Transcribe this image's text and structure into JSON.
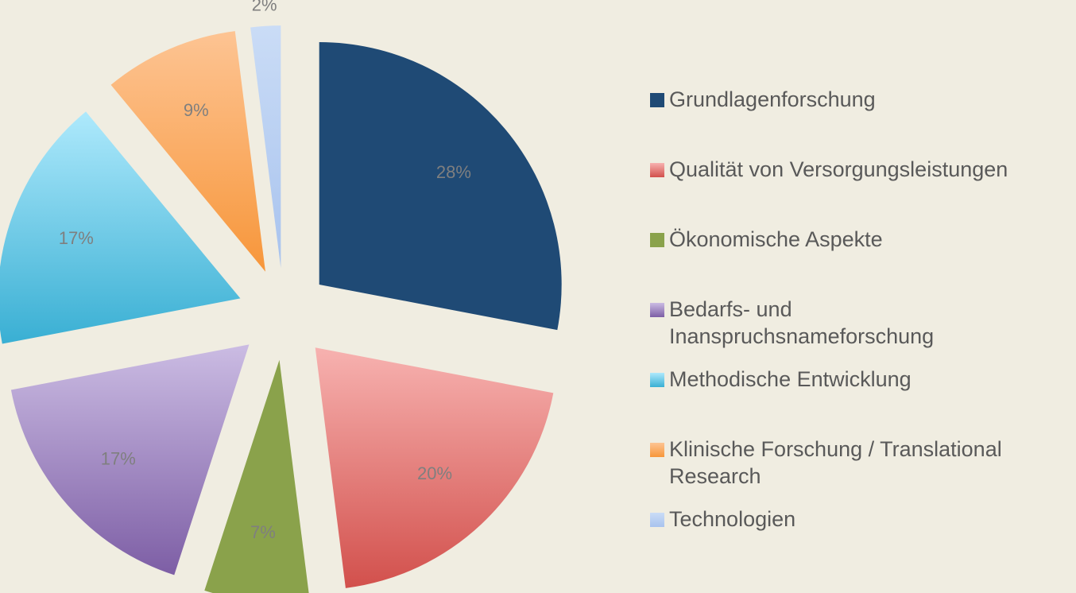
{
  "chart_data": {
    "type": "pie",
    "categories": [
      "Grundlagenforschung",
      "Qualität von Versorgungsleistungen",
      "Ökonomische Aspekte",
      "Bedarfs- und Inanspruchsnameforschung",
      "Methodische Entwicklung",
      "Klinische Forschung / Translational Research",
      "Technologien"
    ],
    "values": [
      28,
      20,
      7,
      17,
      17,
      9,
      2
    ],
    "value_labels": [
      "28%",
      "20%",
      "7%",
      "17%",
      "17%",
      "9%",
      "2%"
    ],
    "colors": [
      [
        "#1f4a75",
        "#1f4a75"
      ],
      [
        "#f7b2b0",
        "#d2504c"
      ],
      [
        "#8aa24b",
        "#8aa24b"
      ],
      [
        "#cbbce3",
        "#7d5ea5"
      ],
      [
        "#aee9fc",
        "#39afd3"
      ],
      [
        "#fdc493",
        "#f7963a"
      ],
      [
        "#cadcf6",
        "#a8c3ee"
      ]
    ],
    "legend": "right"
  }
}
